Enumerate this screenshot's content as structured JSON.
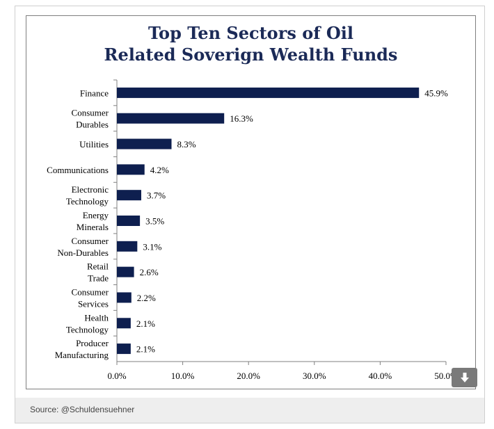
{
  "chart_data": {
    "type": "bar",
    "orientation": "horizontal",
    "title_lines": [
      "Top Ten Sectors of Oil",
      "Related Soverign Wealth Funds"
    ],
    "categories": [
      [
        "Finance"
      ],
      [
        "Consumer",
        "Durables"
      ],
      [
        "Utilities"
      ],
      [
        "Communications"
      ],
      [
        "Electronic",
        "Technology"
      ],
      [
        "Energy",
        "Minerals"
      ],
      [
        "Consumer",
        "Non-Durables"
      ],
      [
        "Retail",
        "Trade"
      ],
      [
        "Consumer",
        "Services"
      ],
      [
        "Health",
        "Technology"
      ],
      [
        "Producer",
        "Manufacturing"
      ]
    ],
    "values": [
      45.9,
      16.3,
      8.3,
      4.2,
      3.7,
      3.5,
      3.1,
      2.6,
      2.2,
      2.1,
      2.1
    ],
    "value_labels": [
      "45.9%",
      "16.3%",
      "8.3%",
      "4.2%",
      "3.7%",
      "3.5%",
      "3.1%",
      "2.6%",
      "2.2%",
      "2.1%",
      "2.1%"
    ],
    "xticks": [
      0,
      10,
      20,
      30,
      40,
      50
    ],
    "xtick_labels": [
      "0.0%",
      "10.0%",
      "20.0%",
      "30.0%",
      "40.0%",
      "50.0%"
    ],
    "xlim": [
      0,
      50
    ],
    "grid": false,
    "bar_color": "#0e1f4f"
  },
  "footer": {
    "source_text": "Source:  @Schuldensuehner"
  },
  "controls": {
    "download_icon": "download-arrow-icon"
  },
  "colors": {
    "title": "#1b2a57",
    "bar": "#0e1f4f",
    "footer_bg": "#eeeeee",
    "button_bg": "#7a7a7a"
  }
}
